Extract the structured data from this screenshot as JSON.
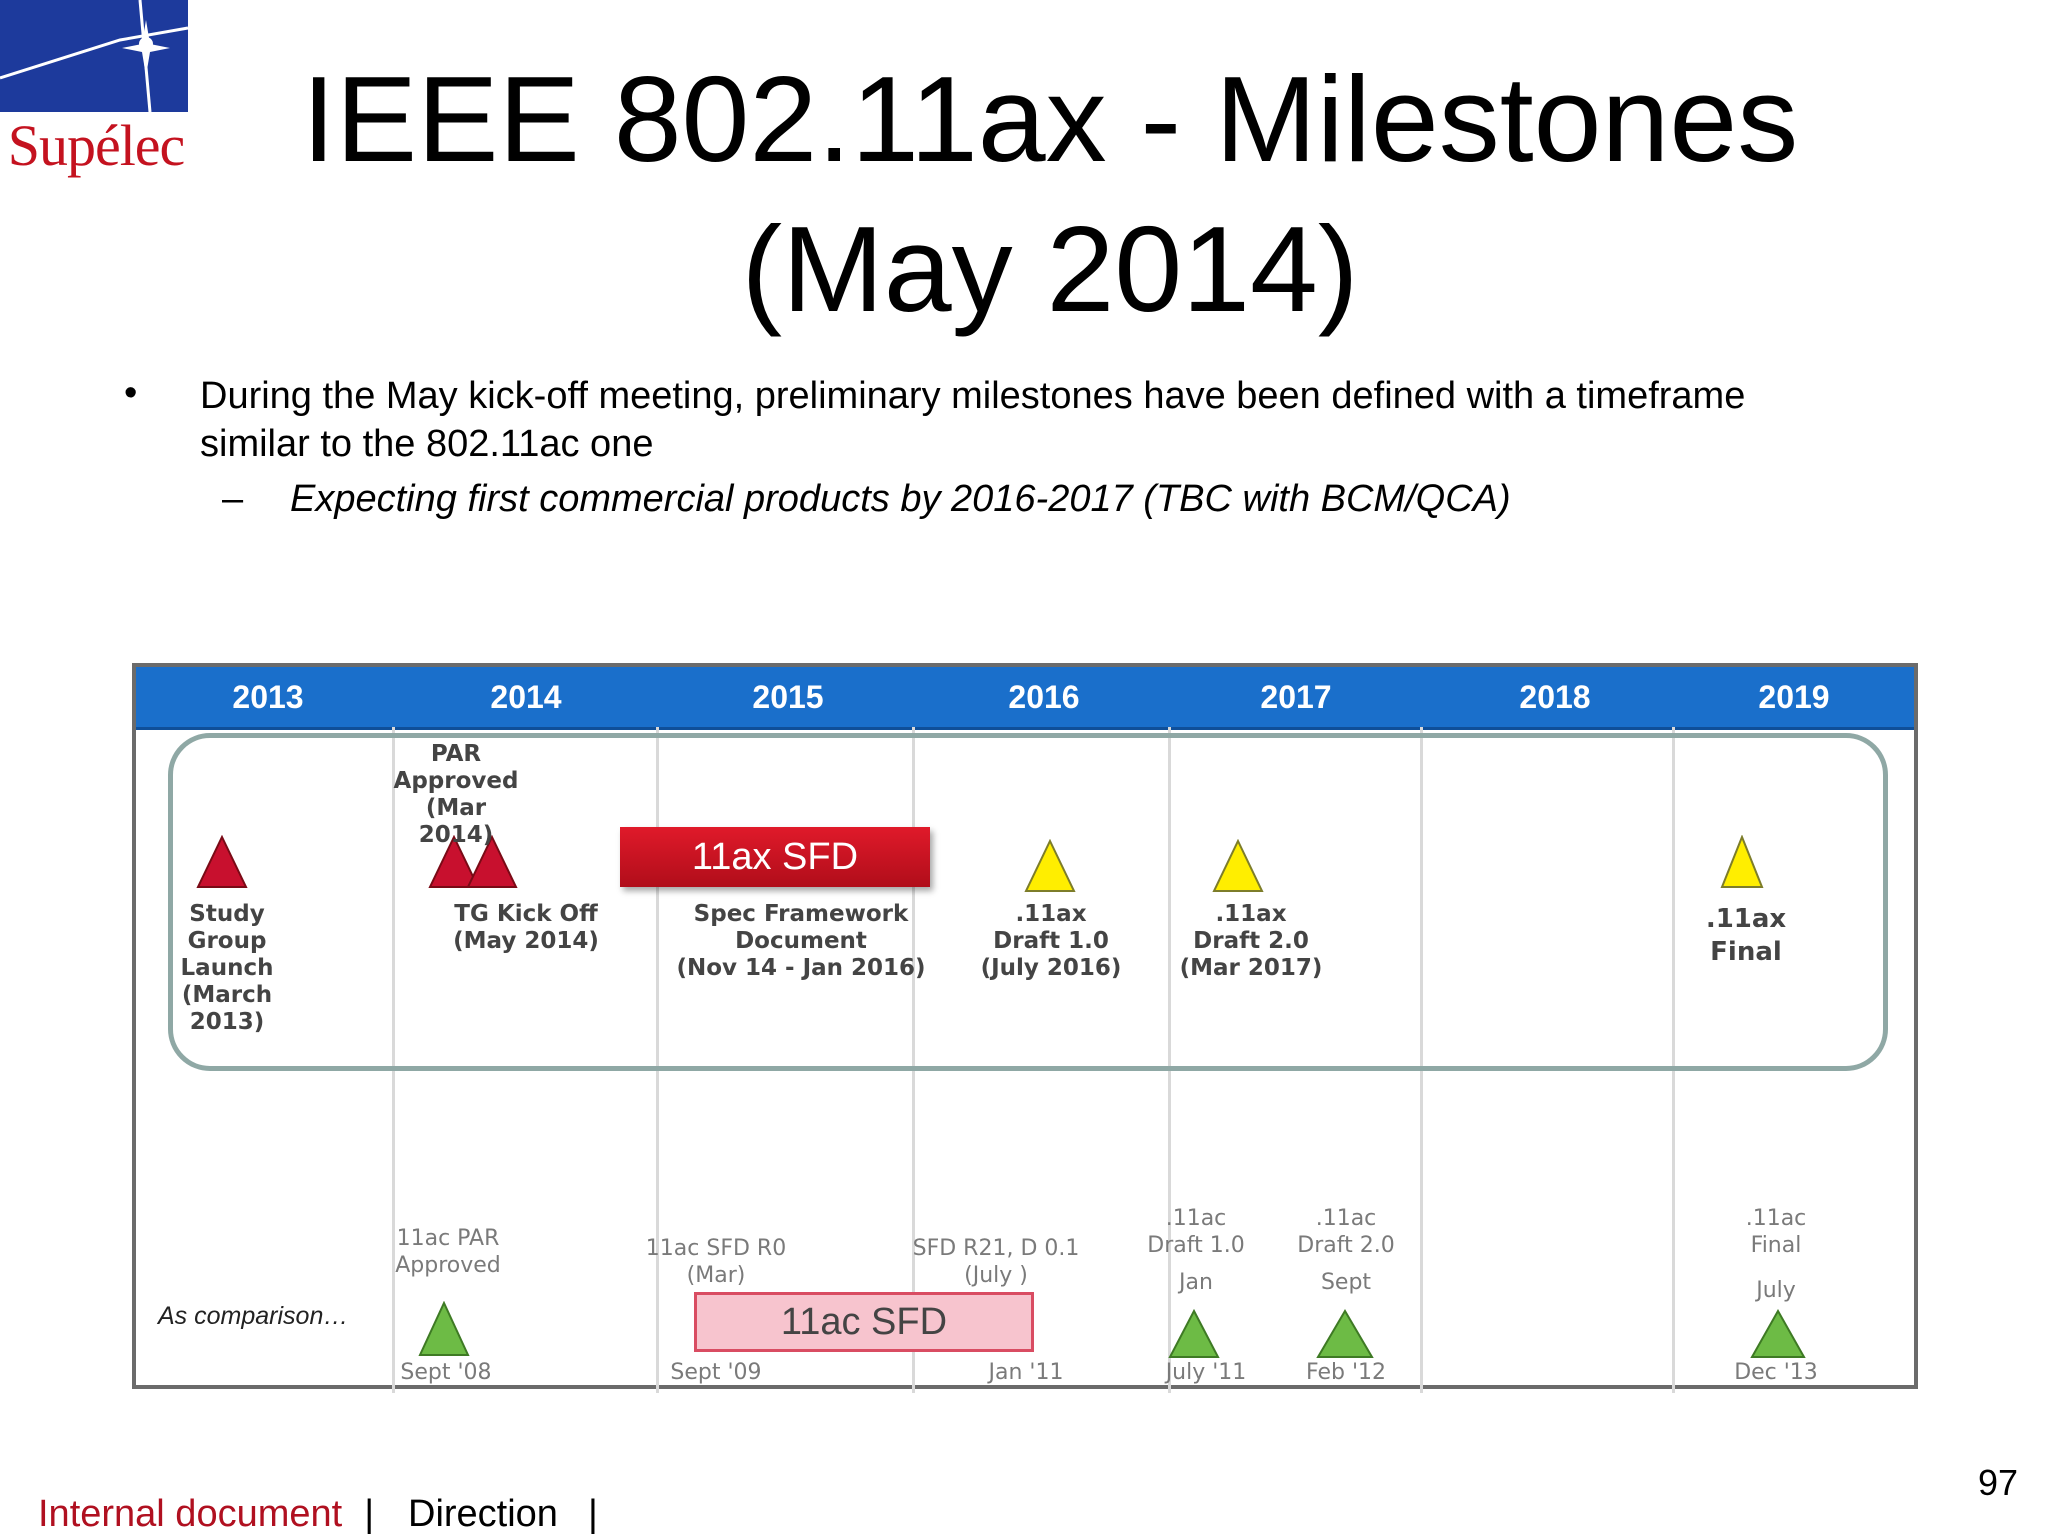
{
  "logo": {
    "text": "Supélec"
  },
  "title": {
    "line1": "IEEE 802.11ax - Milestones",
    "line2": "(May 2014)"
  },
  "bullets": {
    "main_line1": "During the May kick-off meeting, preliminary milestones have been defined with a timeframe",
    "main_line2": "similar to the 802.11ac one",
    "dash": "–",
    "bullet": "•",
    "sub": "Expecting first commercial products by 2016-2017 (TBC with BCM/QCA)"
  },
  "timeline": {
    "years": [
      "2013",
      "2014",
      "2015",
      "2016",
      "2017",
      "2018",
      "2019"
    ],
    "ax_milestones": {
      "study_group": [
        "Study",
        "Group",
        "Launch",
        "(March",
        "2013)"
      ],
      "par_approved": [
        "PAR",
        "Approved",
        "(Mar 2014)"
      ],
      "tg_kickoff": [
        "TG Kick Off",
        "(May 2014)"
      ],
      "sfd_bar": "11ax SFD",
      "spec_framework": [
        "Spec Framework",
        "Document",
        "(Nov 14 -  Jan  2016)"
      ],
      "draft1": [
        ".11ax",
        "Draft 1.0",
        "(July 2016)"
      ],
      "draft2": [
        ".11ax",
        "Draft 2.0",
        "(Mar 2017)"
      ],
      "final": [
        ".11ax",
        "Final"
      ]
    },
    "ac_comparison": {
      "label": "As comparison…",
      "par": [
        "11ac PAR",
        "Approved"
      ],
      "par_date": "Sept '08",
      "sfd_r0": [
        "11ac SFD R0",
        "(Mar)"
      ],
      "sfd_r0_date": "Sept '09",
      "sfd_bar": "11ac SFD",
      "sfd_r21": [
        "SFD R21, D 0.1",
        "(July )"
      ],
      "sfd_r21_date": "Jan  '11",
      "draft1": [
        ".11ac",
        "Draft  1.0",
        "Jan"
      ],
      "draft1_date": "July  '11",
      "draft2": [
        ".11ac",
        "Draft  2.0",
        "Sept"
      ],
      "draft2_date": "Feb  '12",
      "final": [
        ".11ac",
        "Final",
        "July"
      ],
      "final_date": "Dec '13"
    },
    "colors": {
      "header": "#1a6fcb",
      "red_marker": "#c8102e",
      "yellow_marker": "#ffee00",
      "green_marker": "#6dbb45"
    }
  },
  "footer": {
    "internal": "Internal document",
    "sep": "|",
    "direction": "Direction",
    "page": "97"
  }
}
